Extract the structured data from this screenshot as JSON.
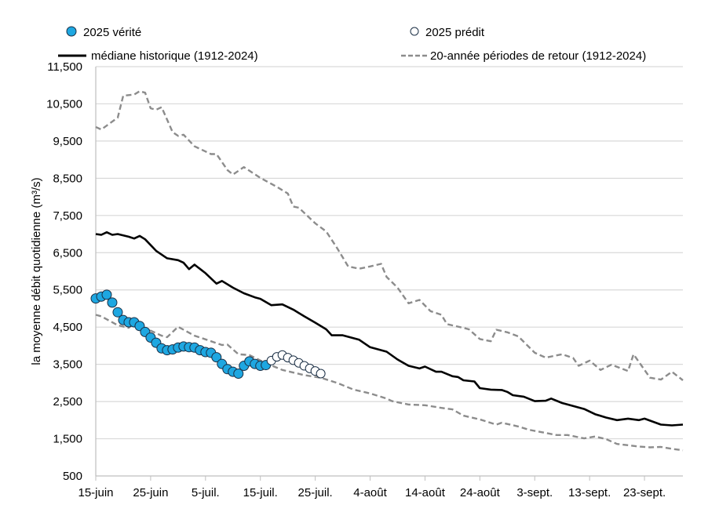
{
  "chart_data": {
    "type": "line",
    "title": "",
    "xlabel": "",
    "ylabel": "la moyenne débit quotidienne (m³/s)",
    "ylim": [
      500,
      11500
    ],
    "xlim": [
      "06-15",
      "09-30"
    ],
    "grid": true,
    "legend_position": "top",
    "y_ticks": [
      "500",
      "1,500",
      "2,500",
      "3,500",
      "4,500",
      "5,500",
      "6,500",
      "7,500",
      "8,500",
      "9,500",
      "10,500",
      "11,500"
    ],
    "x_ticks": [
      {
        "date": "06-15",
        "label": "15-juin"
      },
      {
        "date": "06-25",
        "label": "25-juin"
      },
      {
        "date": "07-05",
        "label": "5-juil."
      },
      {
        "date": "07-15",
        "label": "15-juil."
      },
      {
        "date": "07-25",
        "label": "25-juil."
      },
      {
        "date": "08-04",
        "label": "4-août"
      },
      {
        "date": "08-14",
        "label": "14-août"
      },
      {
        "date": "08-24",
        "label": "24-août"
      },
      {
        "date": "09-03",
        "label": "3-sept."
      },
      {
        "date": "09-13",
        "label": "13-sept."
      },
      {
        "date": "09-23",
        "label": "23-sept."
      }
    ],
    "colors": {
      "truth_fill": "#1ea7e1",
      "marker_edge": "#1b2f45",
      "median": "#000000",
      "return_period": "#8c8c8c",
      "grid": "#d9d9d9"
    },
    "series": [
      {
        "name": "2025 vérité",
        "style": "marker-filled",
        "dates": [
          "06-15",
          "06-16",
          "06-17",
          "06-18",
          "06-19",
          "06-20",
          "06-21",
          "06-22",
          "06-23",
          "06-24",
          "06-25",
          "06-26",
          "06-27",
          "06-28",
          "06-29",
          "06-30",
          "07-01",
          "07-02",
          "07-03",
          "07-04",
          "07-05",
          "07-06",
          "07-07",
          "07-08",
          "07-09",
          "07-10",
          "07-11",
          "07-12",
          "07-13",
          "07-14",
          "07-15",
          "07-16"
        ],
        "values": [
          5270,
          5320,
          5370,
          5160,
          4900,
          4690,
          4630,
          4630,
          4530,
          4370,
          4220,
          4080,
          3930,
          3880,
          3900,
          3950,
          3980,
          3960,
          3950,
          3880,
          3830,
          3810,
          3690,
          3510,
          3370,
          3300,
          3250,
          3460,
          3580,
          3510,
          3460,
          3480
        ]
      },
      {
        "name": "2025 prédit",
        "style": "marker-open",
        "dates": [
          "07-17",
          "07-18",
          "07-19",
          "07-20",
          "07-21",
          "07-22",
          "07-23",
          "07-24",
          "07-25",
          "07-26"
        ],
        "values": [
          3600,
          3700,
          3750,
          3680,
          3610,
          3540,
          3460,
          3390,
          3320,
          3250
        ]
      },
      {
        "name": "médiane historique (1912-2024)",
        "style": "solid",
        "dates": [
          "06-15",
          "06-16",
          "06-17",
          "06-18",
          "06-19",
          "06-21",
          "06-22",
          "06-23",
          "06-24",
          "06-26",
          "06-28",
          "06-30",
          "07-01",
          "07-02",
          "07-03",
          "07-05",
          "07-07",
          "07-08",
          "07-10",
          "07-12",
          "07-14",
          "07-15",
          "07-17",
          "07-19",
          "07-21",
          "07-23",
          "07-25",
          "07-27",
          "07-28",
          "07-30",
          "08-02",
          "08-04",
          "08-07",
          "08-09",
          "08-11",
          "08-13",
          "08-14",
          "08-16",
          "08-17",
          "08-19",
          "08-20",
          "08-21",
          "08-23",
          "08-24",
          "08-26",
          "08-28",
          "08-29",
          "08-30",
          "09-01",
          "09-03",
          "09-05",
          "09-06",
          "09-08",
          "09-09",
          "09-12",
          "09-14",
          "09-16",
          "09-18",
          "09-20",
          "09-22",
          "09-23",
          "09-26",
          "09-28",
          "09-30"
        ],
        "values": [
          7000,
          6980,
          7050,
          6980,
          7000,
          6930,
          6880,
          6950,
          6860,
          6550,
          6350,
          6300,
          6230,
          6060,
          6180,
          5950,
          5670,
          5740,
          5560,
          5410,
          5300,
          5260,
          5090,
          5110,
          4970,
          4790,
          4620,
          4440,
          4280,
          4280,
          4160,
          3960,
          3840,
          3630,
          3460,
          3390,
          3440,
          3300,
          3300,
          3180,
          3160,
          3070,
          3040,
          2860,
          2820,
          2810,
          2760,
          2670,
          2630,
          2510,
          2520,
          2580,
          2460,
          2420,
          2300,
          2160,
          2070,
          2000,
          2040,
          2000,
          2040,
          1880,
          1860,
          1880
        ]
      },
      {
        "name": "20-année périodes de retour (1912-2024)",
        "style": "dashed",
        "part": "upper",
        "dates": [
          "06-15",
          "06-16",
          "06-19",
          "06-20",
          "06-22",
          "06-23",
          "06-24",
          "06-25",
          "06-26",
          "06-27",
          "06-29",
          "06-30",
          "07-01",
          "07-03",
          "07-06",
          "07-07",
          "07-09",
          "07-10",
          "07-12",
          "07-15",
          "07-18",
          "07-20",
          "07-21",
          "07-22",
          "07-25",
          "07-27",
          "07-29",
          "07-31",
          "08-02",
          "08-04",
          "08-06",
          "08-07",
          "08-09",
          "08-11",
          "08-13",
          "08-15",
          "08-17",
          "08-18",
          "08-21",
          "08-22",
          "08-24",
          "08-26",
          "08-27",
          "08-29",
          "08-31",
          "09-03",
          "09-05",
          "09-07",
          "09-08",
          "09-10",
          "09-11",
          "09-13",
          "09-15",
          "09-17",
          "09-20",
          "09-21",
          "09-24",
          "09-26",
          "09-28",
          "09-30"
        ],
        "values": [
          9880,
          9810,
          10130,
          10720,
          10750,
          10840,
          10800,
          10380,
          10340,
          10410,
          9740,
          9640,
          9670,
          9360,
          9150,
          9150,
          8720,
          8600,
          8800,
          8510,
          8270,
          8090,
          7740,
          7710,
          7290,
          7070,
          6620,
          6130,
          6070,
          6130,
          6200,
          5850,
          5560,
          5140,
          5230,
          4930,
          4830,
          4580,
          4480,
          4440,
          4180,
          4120,
          4430,
          4360,
          4250,
          3810,
          3680,
          3740,
          3770,
          3670,
          3460,
          3600,
          3350,
          3490,
          3320,
          3770,
          3140,
          3090,
          3300,
          3070
        ]
      },
      {
        "name": "20-année périodes de retour (1912-2024)",
        "style": "dashed",
        "part": "lower",
        "dates": [
          "06-15",
          "06-16",
          "06-19",
          "06-21",
          "06-22",
          "06-27",
          "06-28",
          "06-30",
          "07-03",
          "07-05",
          "07-08",
          "07-09",
          "07-11",
          "07-13",
          "07-16",
          "07-19",
          "07-23",
          "07-26",
          "07-29",
          "08-01",
          "08-04",
          "08-07",
          "08-08",
          "08-11",
          "08-14",
          "08-17",
          "08-19",
          "08-21",
          "08-24",
          "08-27",
          "08-28",
          "08-31",
          "09-02",
          "09-07",
          "09-09",
          "09-12",
          "09-14",
          "09-16",
          "09-18",
          "09-22",
          "09-24",
          "09-26",
          "09-28",
          "09-30"
        ],
        "values": [
          4830,
          4790,
          4550,
          4480,
          4610,
          4270,
          4230,
          4510,
          4270,
          4170,
          4020,
          4030,
          3770,
          3750,
          3530,
          3350,
          3210,
          3140,
          3000,
          2820,
          2720,
          2580,
          2510,
          2420,
          2400,
          2330,
          2290,
          2120,
          2020,
          1880,
          1930,
          1830,
          1740,
          1600,
          1600,
          1510,
          1560,
          1490,
          1360,
          1290,
          1270,
          1280,
          1230,
          1190
        ]
      }
    ]
  }
}
